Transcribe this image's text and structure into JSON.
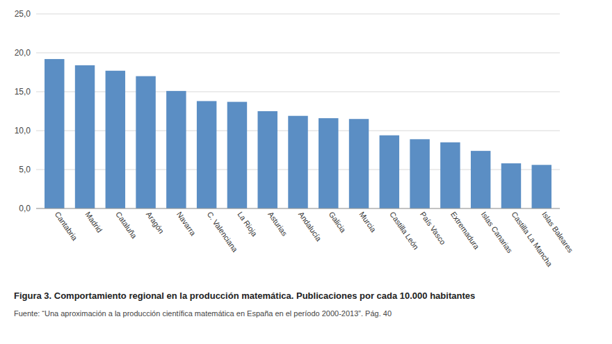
{
  "chart_data": {
    "type": "bar",
    "title": "Figura 3. Comportamiento regional en la producción matemática. Publicaciones por cada 10.000 habitantes",
    "annotations": [
      "Fuente: “Una aproximación a la producción científica matemática en España en el período 2000-2013”. Pág. 40"
    ],
    "categories": [
      "Cantabria",
      "Madrid",
      "Cataluña",
      "Aragón",
      "Navarra",
      "C. Valenciana",
      "La Rioja",
      "Asturias",
      "Andalucía",
      "Galicia",
      "Murcia",
      "Castilla León",
      "País Vasco",
      "Extremadura",
      "Islas Canarias",
      "Castilla La Mancha",
      "Islas Baleares"
    ],
    "values": [
      19.2,
      18.4,
      17.7,
      17.0,
      15.1,
      13.8,
      13.7,
      12.5,
      11.9,
      11.6,
      11.5,
      9.4,
      8.9,
      8.5,
      7.4,
      5.8,
      5.6
    ],
    "color": "#5b8ec4",
    "ylim": [
      0,
      25
    ],
    "yticks": [
      {
        "value": 0.0,
        "label": "0,0"
      },
      {
        "value": 5.0,
        "label": "5,0"
      },
      {
        "value": 10.0,
        "label": "10,0"
      },
      {
        "value": 15.0,
        "label": "15,0"
      },
      {
        "value": 20.0,
        "label": "20,0"
      },
      {
        "value": 25.0,
        "label": "25,0"
      }
    ],
    "grid": true
  }
}
